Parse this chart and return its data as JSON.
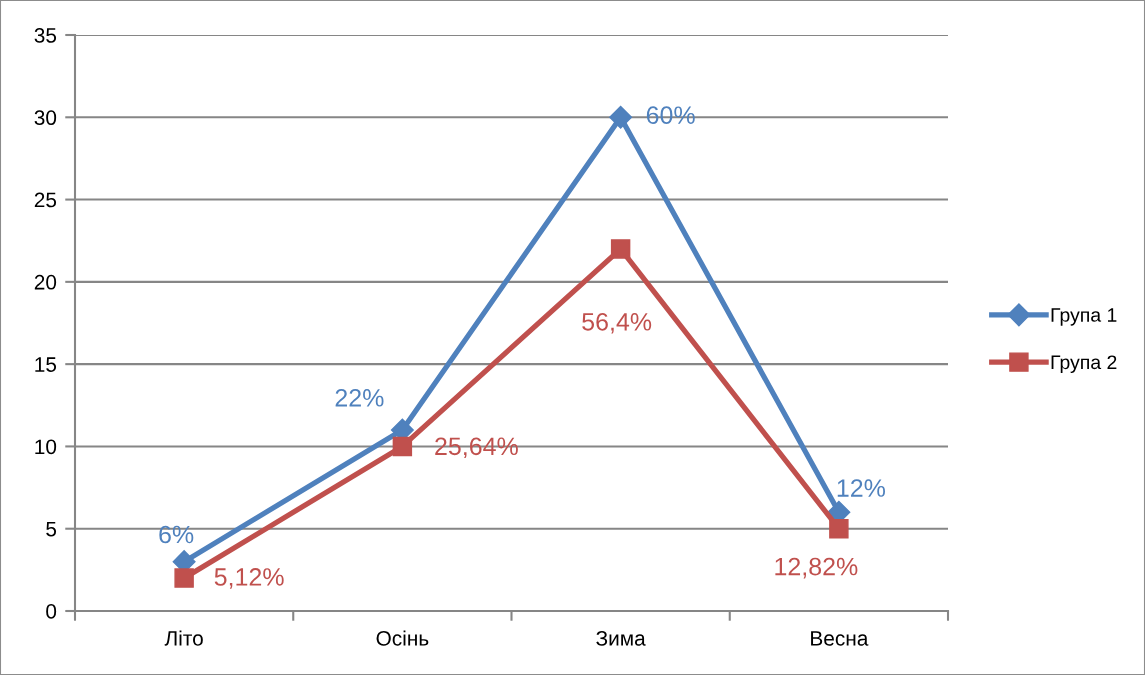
{
  "chart_data": {
    "type": "line",
    "categories": [
      "Літо",
      "Осінь",
      "Зима",
      "Весна"
    ],
    "ylim": [
      0,
      35
    ],
    "yticks": [
      0,
      5,
      10,
      15,
      20,
      25,
      30,
      35
    ],
    "grid": "y",
    "legend": "right",
    "line_style": "solid",
    "series": [
      {
        "name": "Група 1",
        "color": "#4f81bd",
        "marker": "diamond",
        "values": [
          3,
          11,
          30,
          6
        ]
      },
      {
        "name": "Група 2",
        "color": "#c0504d",
        "marker": "square",
        "values": [
          2,
          10,
          22,
          5
        ]
      }
    ],
    "annotations": [
      {
        "text": "6%",
        "x": "Літо",
        "y": 3
      },
      {
        "text": "22%",
        "x": "Осінь",
        "y": 11
      },
      {
        "text": "60%",
        "x": "Зима",
        "y": 30
      },
      {
        "text": "12%",
        "x": "Весна",
        "y": 6
      },
      {
        "text": "5,12%",
        "x": "Літо",
        "y": 2
      },
      {
        "text": "25,64%",
        "x": "Осінь",
        "y": 10
      },
      {
        "text": "56,4%",
        "x": "Зима",
        "y": 22
      },
      {
        "text": "12,82%",
        "x": "Весна",
        "y": 5
      }
    ]
  }
}
